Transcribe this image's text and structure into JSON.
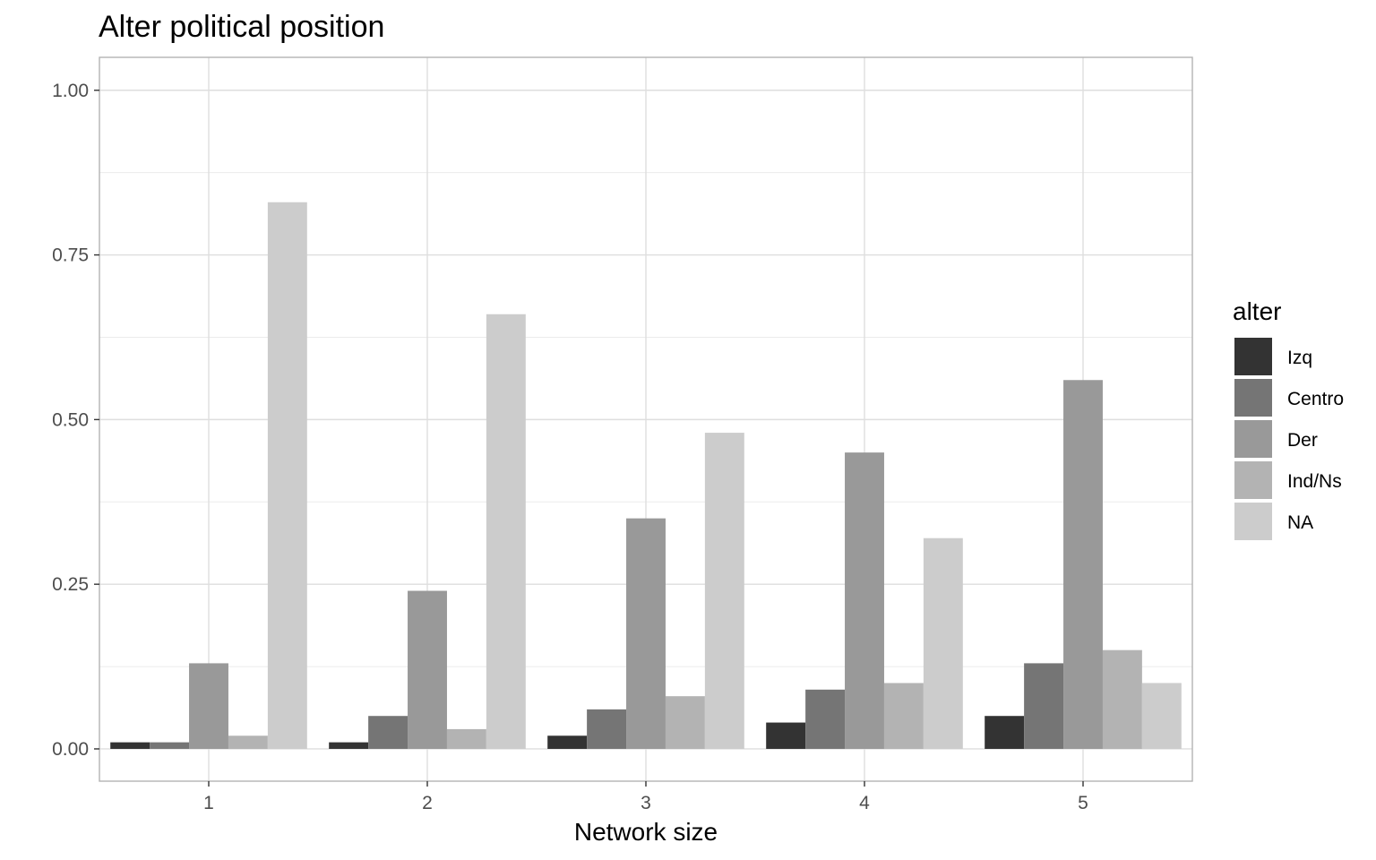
{
  "chart_data": {
    "type": "bar",
    "title": "Alter political position",
    "xlabel": "Network size",
    "ylabel": "",
    "categories": [
      "1",
      "2",
      "3",
      "4",
      "5"
    ],
    "ylim": [
      -0.049,
      1.05
    ],
    "yticks": [
      0,
      0.25,
      0.5,
      0.75,
      1
    ],
    "ytick_labels": [
      "0.00",
      "0.25",
      "0.50",
      "0.75",
      "1.00"
    ],
    "grid": true,
    "legend": {
      "title": "alter",
      "position": "right"
    },
    "series": [
      {
        "name": "Izq",
        "color": "#333333",
        "values": [
          0.01,
          0.01,
          0.02,
          0.04,
          0.05
        ]
      },
      {
        "name": "Centro",
        "color": "#757575",
        "values": [
          0.01,
          0.05,
          0.06,
          0.09,
          0.13
        ]
      },
      {
        "name": "Der",
        "color": "#999999",
        "values": [
          0.13,
          0.24,
          0.35,
          0.45,
          0.56
        ]
      },
      {
        "name": "Ind/Ns",
        "color": "#b3b3b3",
        "values": [
          0.02,
          0.03,
          0.08,
          0.1,
          0.15
        ]
      },
      {
        "name": "NA",
        "color": "#cccccc",
        "values": [
          0.83,
          0.66,
          0.48,
          0.32,
          0.1
        ]
      }
    ]
  }
}
